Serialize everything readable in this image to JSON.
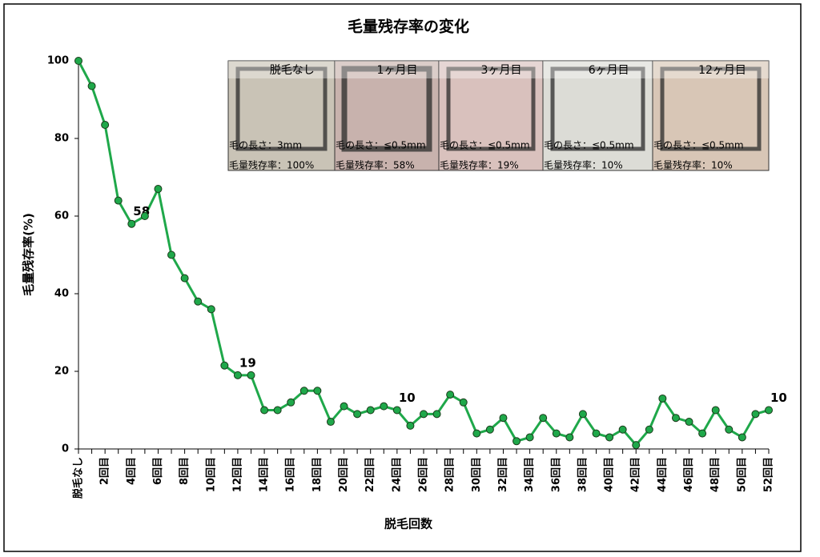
{
  "chart_data": {
    "type": "line",
    "title": "毛量残存率の変化",
    "x_label": "脱毛回数",
    "y_label": "毛量残存率(%)",
    "categories": [
      "脱毛なし",
      null,
      "2回目",
      null,
      "4回目",
      null,
      "6回目",
      null,
      "8回目",
      null,
      "10回目",
      null,
      "12回目",
      null,
      "14回目",
      null,
      "16回目",
      null,
      "18回目",
      null,
      "20回目",
      null,
      "22回目",
      null,
      "24回目",
      null,
      "26回目",
      null,
      "28回目",
      null,
      "30回目",
      null,
      "32回目",
      null,
      "34回目",
      null,
      "36回目",
      null,
      "38回目",
      null,
      "40回目",
      null,
      "42回目",
      null,
      "44回目",
      null,
      "46回目",
      null,
      "48回目",
      null,
      "50回目",
      null,
      "52回目"
    ],
    "series": [
      {
        "name": "毛量残存率",
        "color": "#1fa84a",
        "values": [
          100,
          93.5,
          83.5,
          64,
          58,
          60,
          67,
          50,
          44,
          38,
          36,
          21.5,
          19,
          19,
          10,
          10,
          12,
          15,
          15,
          7,
          11,
          9,
          10,
          11,
          10,
          6,
          9,
          9,
          14,
          12,
          4,
          5,
          8,
          2,
          3,
          8,
          4,
          3,
          9,
          4,
          3,
          5,
          1,
          5,
          13,
          8,
          7,
          4,
          10,
          5,
          3,
          9,
          10
        ],
        "value_labels": [
          null,
          null,
          null,
          null,
          "58",
          null,
          null,
          null,
          null,
          null,
          null,
          null,
          "19",
          null,
          null,
          null,
          null,
          null,
          null,
          null,
          null,
          null,
          null,
          null,
          "10",
          null,
          null,
          null,
          null,
          null,
          null,
          null,
          null,
          null,
          null,
          null,
          null,
          null,
          null,
          null,
          null,
          null,
          null,
          null,
          null,
          null,
          null,
          null,
          null,
          null,
          null,
          null,
          "10"
        ]
      }
    ],
    "ylim": [
      0,
      100
    ],
    "yticks": [
      0,
      20,
      40,
      60,
      80,
      100
    ],
    "grid": false,
    "insets": [
      {
        "title": "脱毛なし",
        "length": "毛の長さ：3mm",
        "rate": "毛量残存率：100%"
      },
      {
        "title": "1ヶ月目",
        "length": "毛の長さ：≦0.5mm",
        "rate": "毛量残存率：58%"
      },
      {
        "title": "3ヶ月目",
        "length": "毛の長さ：≦0.5mm",
        "rate": "毛量残存率：19%"
      },
      {
        "title": "6ヶ月目",
        "length": "毛の長さ：≦0.5mm",
        "rate": "毛量残存率：10%"
      },
      {
        "title": "12ヶ月目",
        "length": "毛の長さ：≦0.5mm",
        "rate": "毛量残存率：10%"
      }
    ]
  }
}
